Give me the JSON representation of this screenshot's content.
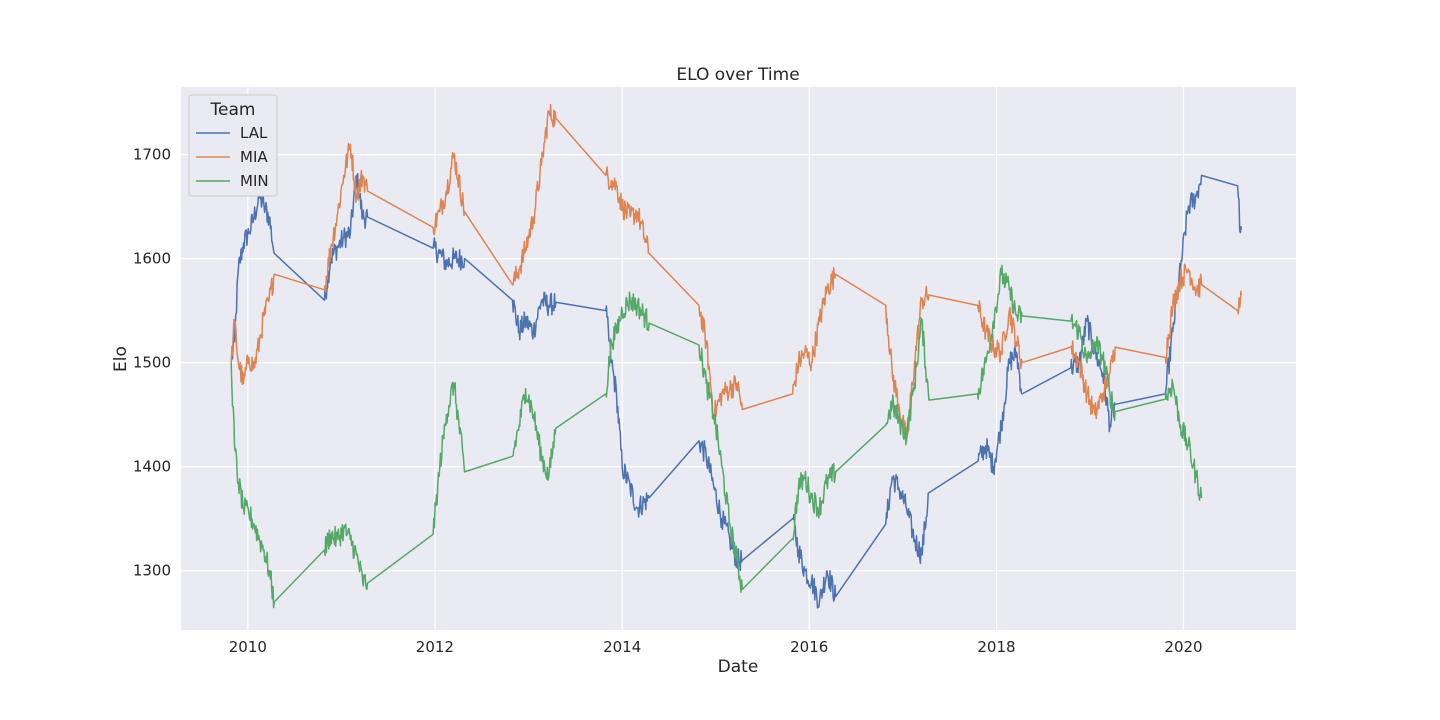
{
  "chart_data": {
    "type": "line",
    "title": "ELO over Time",
    "xlabel": "Date",
    "ylabel": "Elo",
    "x_ticks": [
      "2010",
      "2012",
      "2014",
      "2016",
      "2018",
      "2020"
    ],
    "y_ticks": [
      "1300",
      "1400",
      "1500",
      "1600",
      "1700"
    ],
    "xlim": [
      "2009-04-15",
      "2021-03-15"
    ],
    "ylim": [
      1243,
      1765
    ],
    "grid": true,
    "legend": {
      "title": "Team",
      "placement": "top-left"
    },
    "series": [
      {
        "name": "LAL",
        "color": "#4c72b0",
        "x": [
          "2009-10-28",
          "2009-11-10",
          "2009-11-25",
          "2009-12-15",
          "2010-01-05",
          "2010-01-25",
          "2010-02-15",
          "2010-03-05",
          "2010-03-25",
          "2010-04-14",
          "2010-10-27",
          "2010-11-20",
          "2010-12-15",
          "2011-01-10",
          "2011-02-05",
          "2011-03-01",
          "2011-03-25",
          "2011-04-13",
          "2011-12-25",
          "2012-01-20",
          "2012-02-15",
          "2012-03-15",
          "2012-04-26",
          "2012-10-30",
          "2012-11-25",
          "2012-12-20",
          "2013-01-20",
          "2013-02-20",
          "2013-03-20",
          "2013-04-17",
          "2013-10-29",
          "2013-11-20",
          "2013-12-10",
          "2014-01-01",
          "2014-02-01",
          "2014-03-01",
          "2014-04-16",
          "2014-10-28",
          "2014-11-25",
          "2014-12-25",
          "2015-01-25",
          "2015-02-25",
          "2015-03-25",
          "2015-04-15",
          "2015-10-28",
          "2015-11-20",
          "2015-12-15",
          "2016-01-10",
          "2016-02-10",
          "2016-03-10",
          "2016-04-13",
          "2016-10-26",
          "2016-11-20",
          "2016-12-15",
          "2017-01-15",
          "2017-02-15",
          "2017-03-15",
          "2017-04-12",
          "2017-10-19",
          "2017-11-20",
          "2017-12-20",
          "2018-01-20",
          "2018-02-20",
          "2018-03-20",
          "2018-04-11",
          "2018-10-18",
          "2018-11-20",
          "2018-12-20",
          "2019-01-20",
          "2019-02-20",
          "2019-03-20",
          "2019-04-09",
          "2019-10-22",
          "2019-11-20",
          "2019-12-20",
          "2020-01-20",
          "2020-02-20",
          "2020-03-11",
          "2020-07-30",
          "2020-08-10",
          "2020-08-14"
        ],
        "y": [
          1500,
          1520,
          1590,
          1615,
          1625,
          1640,
          1660,
          1650,
          1640,
          1605,
          1560,
          1600,
          1610,
          1620,
          1625,
          1680,
          1640,
          1640,
          1610,
          1605,
          1595,
          1600,
          1600,
          1560,
          1530,
          1540,
          1530,
          1560,
          1555,
          1558,
          1550,
          1500,
          1470,
          1400,
          1380,
          1360,
          1370,
          1425,
          1410,
          1380,
          1350,
          1330,
          1310,
          1310,
          1350,
          1320,
          1300,
          1290,
          1270,
          1300,
          1275,
          1345,
          1390,
          1380,
          1360,
          1330,
          1315,
          1375,
          1405,
          1420,
          1400,
          1440,
          1500,
          1510,
          1470,
          1495,
          1500,
          1540,
          1510,
          1490,
          1440,
          1460,
          1470,
          1530,
          1590,
          1650,
          1660,
          1680,
          1670,
          1625,
          1628
        ]
      },
      {
        "name": "MIA",
        "color": "#dd8452",
        "x": [
          "2009-10-28",
          "2009-11-10",
          "2009-11-25",
          "2009-12-15",
          "2010-01-05",
          "2010-01-25",
          "2010-02-15",
          "2010-03-05",
          "2010-03-25",
          "2010-04-14",
          "2010-10-27",
          "2010-11-20",
          "2010-12-15",
          "2011-01-10",
          "2011-02-05",
          "2011-03-01",
          "2011-03-25",
          "2011-04-13",
          "2011-12-25",
          "2012-01-20",
          "2012-02-15",
          "2012-03-15",
          "2012-04-26",
          "2012-10-30",
          "2012-11-25",
          "2012-12-20",
          "2013-01-20",
          "2013-02-20",
          "2013-03-20",
          "2013-04-17",
          "2013-10-29",
          "2013-11-20",
          "2013-12-10",
          "2014-01-01",
          "2014-02-01",
          "2014-03-01",
          "2014-04-16",
          "2014-10-28",
          "2014-11-25",
          "2014-12-25",
          "2015-01-25",
          "2015-02-25",
          "2015-03-25",
          "2015-04-15",
          "2015-10-28",
          "2015-11-20",
          "2015-12-15",
          "2016-01-10",
          "2016-02-10",
          "2016-03-10",
          "2016-04-13",
          "2016-10-26",
          "2016-11-20",
          "2016-12-15",
          "2017-01-15",
          "2017-02-15",
          "2017-03-15",
          "2017-04-12",
          "2017-10-19",
          "2017-11-20",
          "2017-12-20",
          "2018-01-20",
          "2018-02-20",
          "2018-03-20",
          "2018-04-11",
          "2018-10-18",
          "2018-11-20",
          "2018-12-20",
          "2019-01-20",
          "2019-02-20",
          "2019-03-20",
          "2019-04-09",
          "2019-10-22",
          "2019-11-20",
          "2019-12-20",
          "2020-01-20",
          "2020-02-20",
          "2020-03-11",
          "2020-07-30",
          "2020-08-10",
          "2020-08-14"
        ],
        "y": [
          1500,
          1540,
          1500,
          1480,
          1505,
          1495,
          1520,
          1545,
          1560,
          1585,
          1570,
          1610,
          1640,
          1680,
          1710,
          1660,
          1680,
          1665,
          1630,
          1645,
          1665,
          1700,
          1645,
          1575,
          1590,
          1610,
          1640,
          1690,
          1740,
          1735,
          1680,
          1675,
          1670,
          1650,
          1640,
          1645,
          1605,
          1555,
          1520,
          1450,
          1470,
          1475,
          1480,
          1455,
          1470,
          1500,
          1510,
          1500,
          1540,
          1570,
          1585,
          1555,
          1490,
          1460,
          1425,
          1500,
          1560,
          1565,
          1555,
          1530,
          1515,
          1510,
          1550,
          1520,
          1500,
          1515,
          1500,
          1470,
          1450,
          1470,
          1490,
          1515,
          1505,
          1555,
          1580,
          1590,
          1570,
          1575,
          1550,
          1560,
          1565
        ]
      },
      {
        "name": "MIN",
        "color": "#55a868",
        "x": [
          "2009-10-28",
          "2009-11-10",
          "2009-11-25",
          "2009-12-15",
          "2010-01-05",
          "2010-01-25",
          "2010-02-15",
          "2010-03-05",
          "2010-03-25",
          "2010-04-14",
          "2010-10-27",
          "2010-11-20",
          "2010-12-15",
          "2011-01-10",
          "2011-02-05",
          "2011-03-01",
          "2011-03-25",
          "2011-04-13",
          "2011-12-25",
          "2012-01-20",
          "2012-02-15",
          "2012-03-15",
          "2012-04-26",
          "2012-10-30",
          "2012-11-25",
          "2012-12-20",
          "2013-01-20",
          "2013-02-20",
          "2013-03-20",
          "2013-04-17",
          "2013-10-29",
          "2013-11-20",
          "2013-12-10",
          "2014-01-01",
          "2014-02-01",
          "2014-03-01",
          "2014-04-16",
          "2014-10-28",
          "2014-11-25",
          "2014-12-25",
          "2015-01-25",
          "2015-02-25",
          "2015-03-25",
          "2015-04-15",
          "2015-10-28",
          "2015-11-20",
          "2015-12-15",
          "2016-01-10",
          "2016-02-10",
          "2016-03-10",
          "2016-04-13",
          "2016-10-26",
          "2016-11-20",
          "2016-12-15",
          "2017-01-15",
          "2017-02-15",
          "2017-03-15",
          "2017-04-12",
          "2017-10-19",
          "2017-11-20",
          "2017-12-20",
          "2018-01-20",
          "2018-02-20",
          "2018-03-20",
          "2018-04-11",
          "2018-10-18",
          "2018-11-20",
          "2018-12-20",
          "2019-01-20",
          "2019-02-20",
          "2019-03-20",
          "2019-04-09",
          "2019-10-22",
          "2019-11-20",
          "2019-12-20",
          "2020-01-20",
          "2020-02-20",
          "2020-03-11"
        ],
        "y": [
          1500,
          1420,
          1385,
          1360,
          1355,
          1345,
          1330,
          1320,
          1300,
          1270,
          1320,
          1335,
          1330,
          1340,
          1330,
          1315,
          1290,
          1288,
          1335,
          1400,
          1450,
          1480,
          1395,
          1410,
          1440,
          1475,
          1450,
          1410,
          1390,
          1437,
          1470,
          1520,
          1530,
          1550,
          1560,
          1555,
          1538,
          1517,
          1480,
          1450,
          1400,
          1345,
          1310,
          1282,
          1331,
          1380,
          1390,
          1370,
          1360,
          1385,
          1395,
          1440,
          1460,
          1445,
          1430,
          1480,
          1540,
          1464,
          1470,
          1500,
          1540,
          1585,
          1570,
          1545,
          1545,
          1540,
          1530,
          1500,
          1520,
          1505,
          1470,
          1453,
          1465,
          1480,
          1440,
          1420,
          1390,
          1370
        ]
      }
    ]
  }
}
